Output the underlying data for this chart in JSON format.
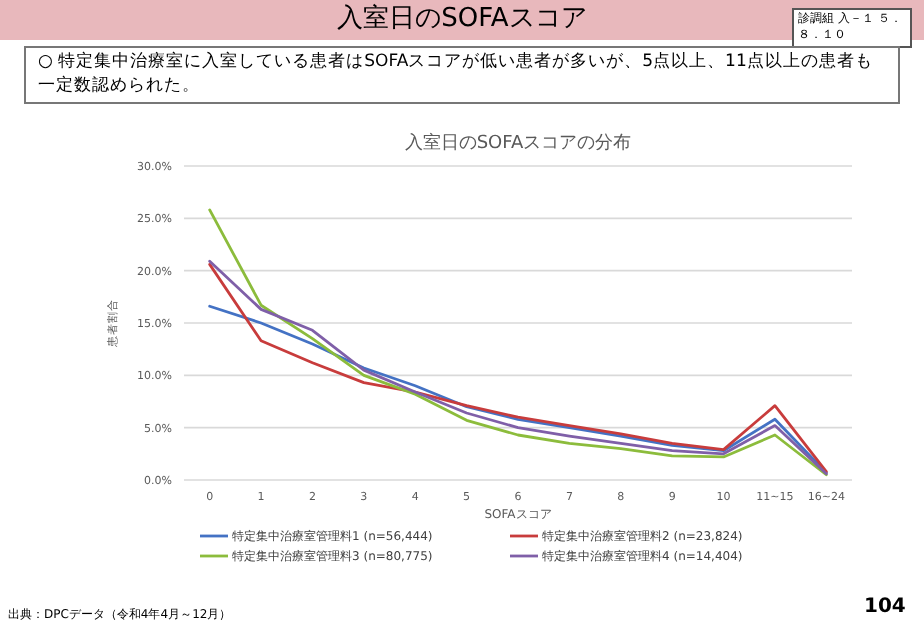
{
  "chart_data": {
    "type": "line",
    "title": "入室日のSOFAスコアの分布",
    "xlabel": "SOFAスコア",
    "ylabel": "患者割合",
    "categories": [
      "0",
      "1",
      "2",
      "3",
      "4",
      "5",
      "6",
      "7",
      "8",
      "9",
      "10",
      "11~15",
      "16~24"
    ],
    "series": [
      {
        "name": "特定集中治療室管理料1 (n=56,444)",
        "color": "#4472c4",
        "values": [
          16.6,
          15.0,
          13.0,
          10.7,
          9.0,
          7.0,
          5.8,
          5.0,
          4.2,
          3.3,
          2.8,
          5.8,
          0.7
        ]
      },
      {
        "name": "特定集中治療室管理料2 (n=23,824)",
        "color": "#c83c3c",
        "values": [
          20.6,
          13.3,
          11.2,
          9.3,
          8.4,
          7.1,
          6.0,
          5.2,
          4.4,
          3.5,
          2.9,
          7.1,
          0.8
        ]
      },
      {
        "name": "特定集中治療室管理料3 (n=80,775)",
        "color": "#8cbc3c",
        "values": [
          25.8,
          16.7,
          13.5,
          10.0,
          8.2,
          5.7,
          4.3,
          3.5,
          3.0,
          2.3,
          2.2,
          4.3,
          0.5
        ]
      },
      {
        "name": "特定集中治療室管理料4 (n=14,404)",
        "color": "#7f5fa8",
        "values": [
          20.9,
          16.3,
          14.3,
          10.5,
          8.4,
          6.4,
          5.0,
          4.2,
          3.5,
          2.8,
          2.5,
          5.2,
          0.6
        ]
      }
    ],
    "ylim": [
      0,
      30
    ],
    "yticks": [
      {
        "value": 0,
        "label": "0.0%"
      },
      {
        "value": 5,
        "label": "5.0%"
      },
      {
        "value": 10,
        "label": "10.0%"
      },
      {
        "value": 15,
        "label": "15.0%"
      },
      {
        "value": 20,
        "label": "20.0%"
      },
      {
        "value": 25,
        "label": "25.0%"
      },
      {
        "value": 30,
        "label": "30.0%"
      }
    ],
    "grid": "y",
    "legend": "bottom",
    "marker": "none",
    "line_style": "solid",
    "annotations": [
      "入室日のSOFAスコア",
      "診調組 入－１ ５．８．１０",
      "○ 特定集中治療室に入室している患者はSOFAスコアが低い患者が多いが、5点以上、11点以上の患者も一定数認められた。",
      "出典：DPCデータ（令和4年4月～12月）",
      "104"
    ]
  }
}
